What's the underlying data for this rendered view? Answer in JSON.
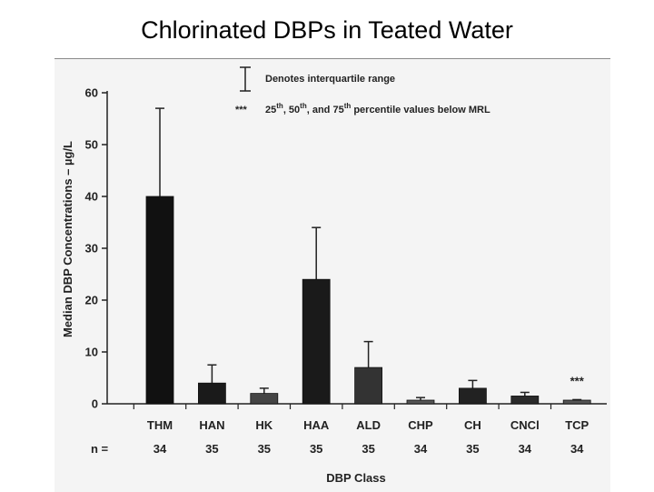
{
  "slide": {
    "title": "Chlorinated DBPs in Teated Water"
  },
  "chart_data": {
    "type": "bar",
    "ylabel": "Median DBP Concentrations – µg/L",
    "xlabel": "DBP Class",
    "ylim": [
      0,
      60
    ],
    "yticks": [
      0,
      10,
      20,
      30,
      40,
      50,
      60
    ],
    "categories": [
      "THM",
      "HAN",
      "HK",
      "HAA",
      "ALD",
      "CHP",
      "CH",
      "CNCl",
      "TCP"
    ],
    "values": [
      40,
      4,
      2,
      24,
      7,
      0.7,
      3,
      1.5,
      0.7
    ],
    "upper_quartile": [
      57,
      7.5,
      3,
      34,
      12,
      1.2,
      4.5,
      2.2,
      0.8
    ],
    "n_label": "n =",
    "n": [
      "34",
      "35",
      "35",
      "35",
      "35",
      "34",
      "35",
      "34",
      "34"
    ],
    "bar_colors": [
      "#111111",
      "#1a1a1a",
      "#444444",
      "#1a1a1a",
      "#333333",
      "#555555",
      "#222222",
      "#2a2a2a",
      "#555555"
    ],
    "legend": {
      "placement": "top",
      "iqr_label": "Denotes interquartile range",
      "mrl_marker": "***",
      "mrl_parts": [
        "25",
        "th",
        ", 50",
        "th",
        ", and 75",
        "th",
        " percentile values below MRL"
      ]
    },
    "annotations": [
      {
        "category": "TCP",
        "text": "***"
      }
    ]
  }
}
